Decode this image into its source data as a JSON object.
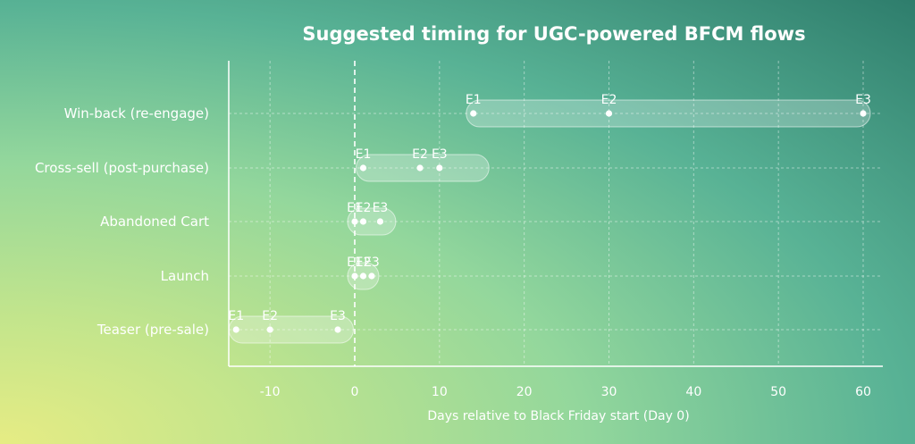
{
  "chart_data": {
    "type": "range-timeline",
    "title": "Suggested timing for UGC-powered BFCM flows",
    "xlabel": "Days relative to Black Friday start (Day 0)",
    "ylabel": "",
    "xlim": [
      -15,
      62
    ],
    "xticks": [
      -10,
      0,
      10,
      20,
      30,
      40,
      50,
      60
    ],
    "reference_line": 0,
    "grid": true,
    "categories": [
      "Win-back (re-engage)",
      "Cross-sell (post-purchase)",
      "Abandoned Cart",
      "Launch",
      "Teaser (pre-sale)"
    ],
    "series": [
      {
        "category": "Win-back (re-engage)",
        "range": [
          14,
          60
        ],
        "emails": [
          {
            "label": "E1",
            "x": 14
          },
          {
            "label": "E2",
            "x": 30
          },
          {
            "label": "E3",
            "x": 60
          }
        ]
      },
      {
        "category": "Cross-sell (post-purchase)",
        "range": [
          1,
          15
        ],
        "emails": [
          {
            "label": "E1",
            "x": 1
          },
          {
            "label": "E2",
            "x": 7.7
          },
          {
            "label": "E3",
            "x": 10
          }
        ]
      },
      {
        "category": "Abandoned Cart",
        "range": [
          0,
          4
        ],
        "emails": [
          {
            "label": "E1",
            "x": 0
          },
          {
            "label": "E2",
            "x": 1
          },
          {
            "label": "E3",
            "x": 3
          }
        ]
      },
      {
        "category": "Launch",
        "range": [
          0,
          2
        ],
        "emails": [
          {
            "label": "E1",
            "x": 0
          },
          {
            "label": "E2",
            "x": 1
          },
          {
            "label": "E3",
            "x": 2
          }
        ]
      },
      {
        "category": "Teaser (pre-sale)",
        "range": [
          -14,
          -1
        ],
        "emails": [
          {
            "label": "E1",
            "x": -14
          },
          {
            "label": "E2",
            "x": -10
          },
          {
            "label": "E3",
            "x": -2
          }
        ]
      }
    ]
  }
}
